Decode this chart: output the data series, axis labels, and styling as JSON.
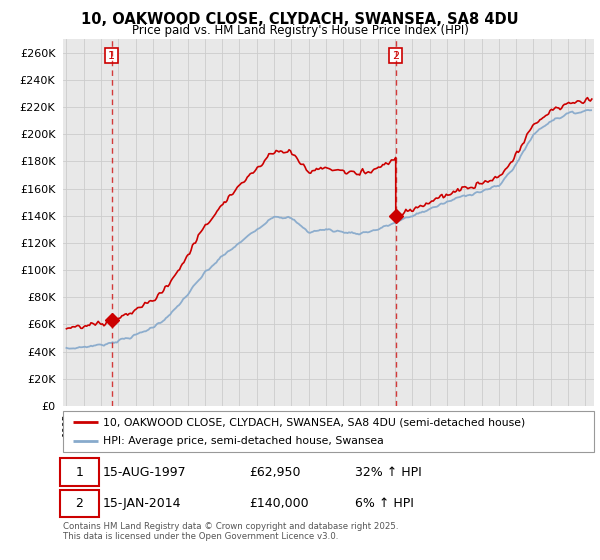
{
  "title": "10, OAKWOOD CLOSE, CLYDACH, SWANSEA, SA8 4DU",
  "subtitle": "Price paid vs. HM Land Registry's House Price Index (HPI)",
  "ylim": [
    0,
    270000
  ],
  "yticks": [
    0,
    20000,
    40000,
    60000,
    80000,
    100000,
    120000,
    140000,
    160000,
    180000,
    200000,
    220000,
    240000,
    260000
  ],
  "xlim_start": 1994.8,
  "xlim_end": 2025.5,
  "transaction1_date": 1997.62,
  "transaction1_price": 62950,
  "transaction1_label": "1",
  "transaction2_date": 2014.04,
  "transaction2_price": 140000,
  "transaction2_label": "2",
  "red_color": "#cc0000",
  "blue_color": "#88aacc",
  "grid_color": "#cccccc",
  "background_color": "#e8e8e8",
  "legend1_text": "10, OAKWOOD CLOSE, CLYDACH, SWANSEA, SA8 4DU (semi-detached house)",
  "legend2_text": "HPI: Average price, semi-detached house, Swansea",
  "note1_date": "15-AUG-1997",
  "note1_price": "£62,950",
  "note1_hpi": "32% ↑ HPI",
  "note2_date": "15-JAN-2014",
  "note2_price": "£140,000",
  "note2_hpi": "6% ↑ HPI",
  "footer": "Contains HM Land Registry data © Crown copyright and database right 2025.\nThis data is licensed under the Open Government Licence v3.0."
}
